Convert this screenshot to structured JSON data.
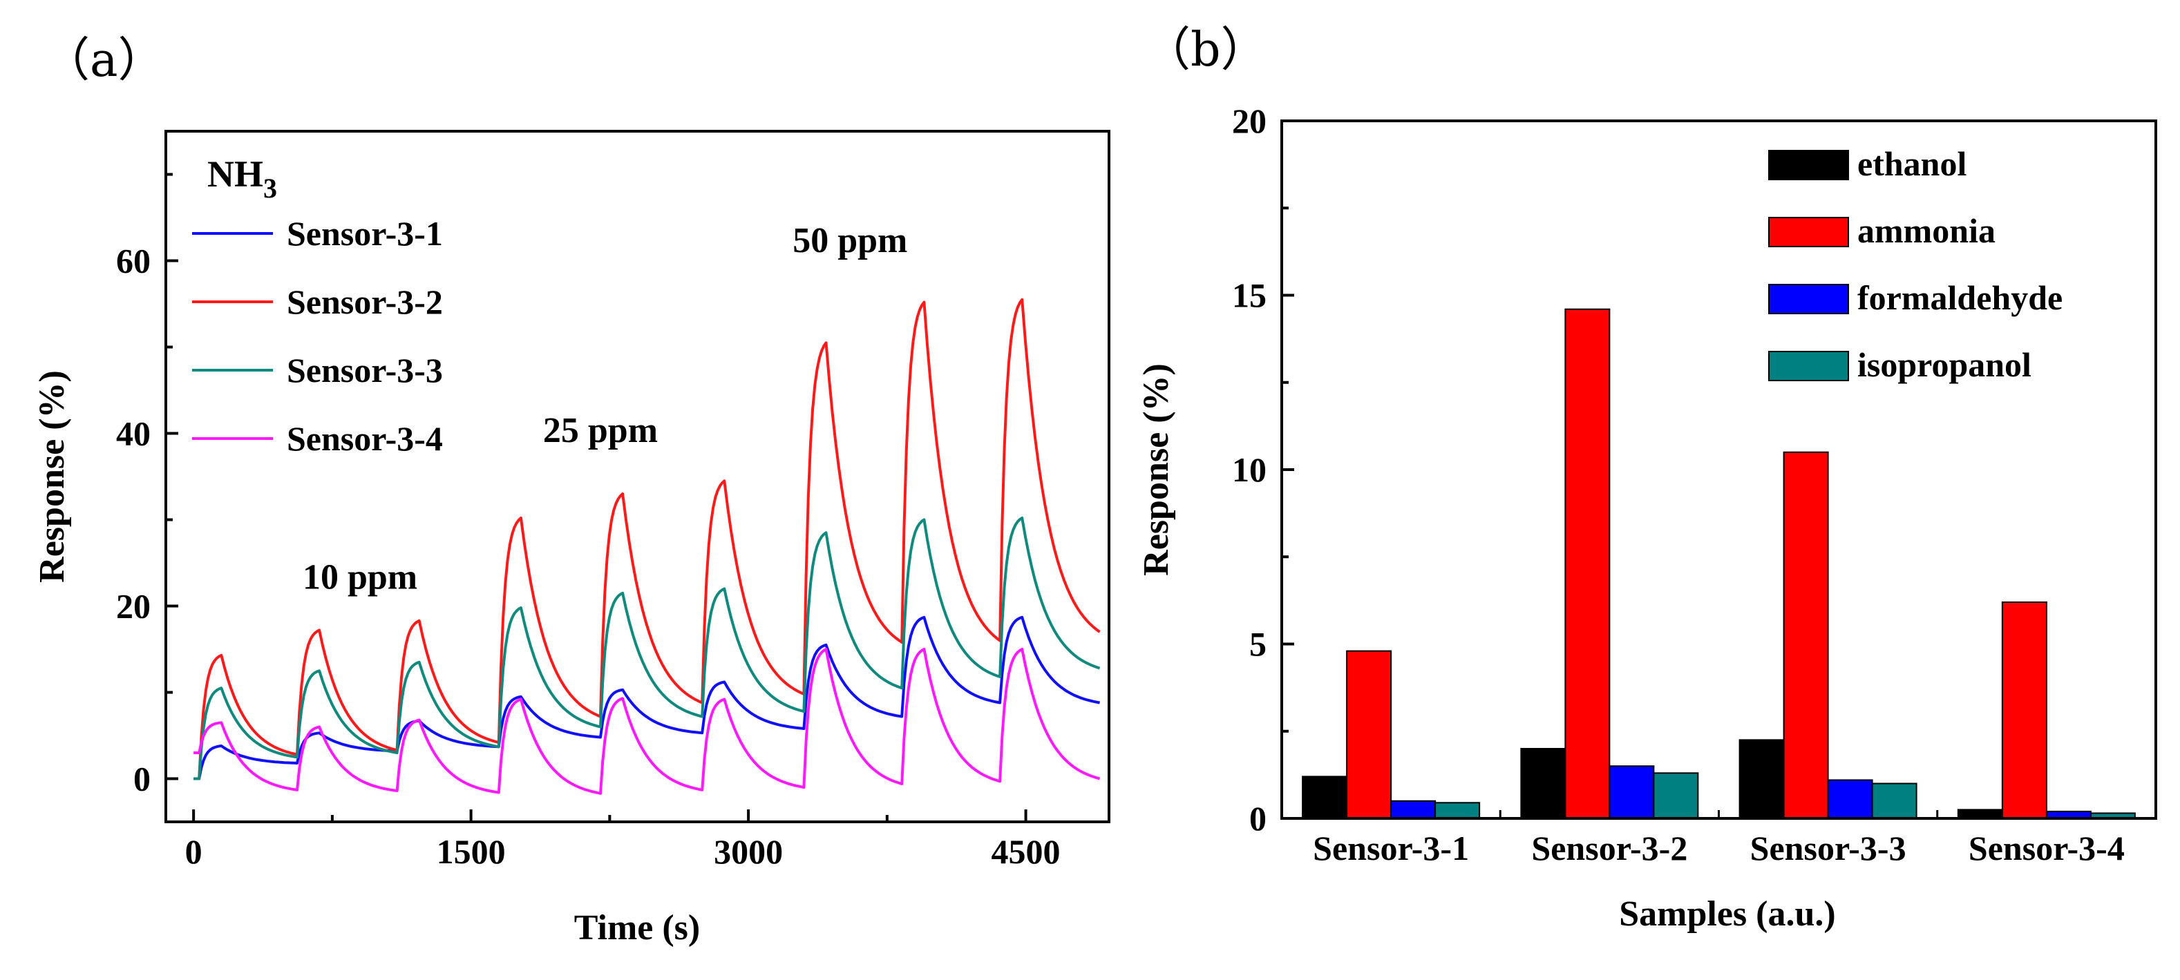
{
  "chart_data": [
    {
      "type": "line",
      "panel_label": "（a）",
      "gas_label": "NH",
      "gas_subscript": "3",
      "xlabel": "Time (s)",
      "ylabel": "Response (%)",
      "xlim": [
        -150,
        4950
      ],
      "ylim": [
        -5,
        75
      ],
      "xticks": [
        0,
        1500,
        3000,
        4500
      ],
      "yticks": [
        0,
        20,
        40,
        60
      ],
      "annotations": [
        {
          "text": "10 ppm",
          "x": 900,
          "y": 22
        },
        {
          "text": "25 ppm",
          "x": 2200,
          "y": 39
        },
        {
          "text": "50 ppm",
          "x": 3550,
          "y": 61
        }
      ],
      "cycles": [
        {
          "start": 30,
          "peak_time": 150,
          "end": 560
        },
        {
          "start": 560,
          "peak_time": 680,
          "end": 1100
        },
        {
          "start": 1100,
          "peak_time": 1220,
          "end": 1650
        },
        {
          "start": 1650,
          "peak_time": 1770,
          "end": 2200
        },
        {
          "start": 2200,
          "peak_time": 2320,
          "end": 2750
        },
        {
          "start": 2750,
          "peak_time": 2870,
          "end": 3300
        },
        {
          "start": 3300,
          "peak_time": 3420,
          "end": 3830
        },
        {
          "start": 3830,
          "peak_time": 3950,
          "end": 4360
        },
        {
          "start": 4360,
          "peak_time": 4480,
          "end": 4900
        }
      ],
      "series": [
        {
          "name": "Sensor-3-1",
          "color": "#1010ff",
          "start_value": 0,
          "peaks": [
            3.8,
            5.3,
            6.7,
            9.5,
            10.3,
            11.2,
            15.5,
            18.7,
            18.7
          ],
          "troughs": [
            1.8,
            3.2,
            3.7,
            4.8,
            5.3,
            5.8,
            7.2,
            8.8,
            8.8
          ]
        },
        {
          "name": "Sensor-3-2",
          "color": "#ff1a1a",
          "start_value": 0,
          "peaks": [
            14.3,
            17.2,
            18.3,
            30.2,
            33.0,
            34.5,
            50.5,
            55.2,
            55.5
          ],
          "troughs": [
            2.8,
            3.3,
            4.2,
            7.2,
            8.8,
            9.8,
            15.8,
            16.0,
            17.0
          ]
        },
        {
          "name": "Sensor-3-3",
          "color": "#0e8a7e",
          "start_value": 0,
          "peaks": [
            10.5,
            12.5,
            13.5,
            19.8,
            21.5,
            22.0,
            28.5,
            30.0,
            30.2
          ],
          "troughs": [
            2.5,
            3.0,
            3.7,
            6.0,
            7.2,
            7.8,
            10.5,
            11.8,
            12.8
          ]
        },
        {
          "name": "Sensor-3-4",
          "color": "#ff19ff",
          "start_value": 3,
          "peaks": [
            6.5,
            6.0,
            6.8,
            9.2,
            9.3,
            9.2,
            15.0,
            15.0,
            15.0
          ],
          "troughs": [
            -1.3,
            -1.4,
            -1.6,
            -1.7,
            -1.3,
            -1.0,
            -0.6,
            -0.3,
            0.0
          ]
        }
      ]
    },
    {
      "type": "bar",
      "panel_label": "（b）",
      "xlabel": "Samples (a.u.)",
      "ylabel": "Response (%)",
      "ylim": [
        0,
        20
      ],
      "yticks": [
        0,
        5,
        10,
        15,
        20
      ],
      "categories": [
        "Sensor-3-1",
        "Sensor-3-2",
        "Sensor-3-3",
        "Sensor-3-4"
      ],
      "series": [
        {
          "name": "ethanol",
          "color": "#000000",
          "values": [
            1.2,
            2.0,
            2.25,
            0.25
          ]
        },
        {
          "name": "ammonia",
          "color": "#ff0000",
          "values": [
            4.8,
            14.6,
            10.5,
            6.2
          ]
        },
        {
          "name": "formaldehyde",
          "color": "#0000ff",
          "values": [
            0.5,
            1.5,
            1.1,
            0.2
          ]
        },
        {
          "name": "isopropanol",
          "color": "#008080",
          "values": [
            0.45,
            1.3,
            1.0,
            0.15
          ]
        }
      ]
    }
  ]
}
